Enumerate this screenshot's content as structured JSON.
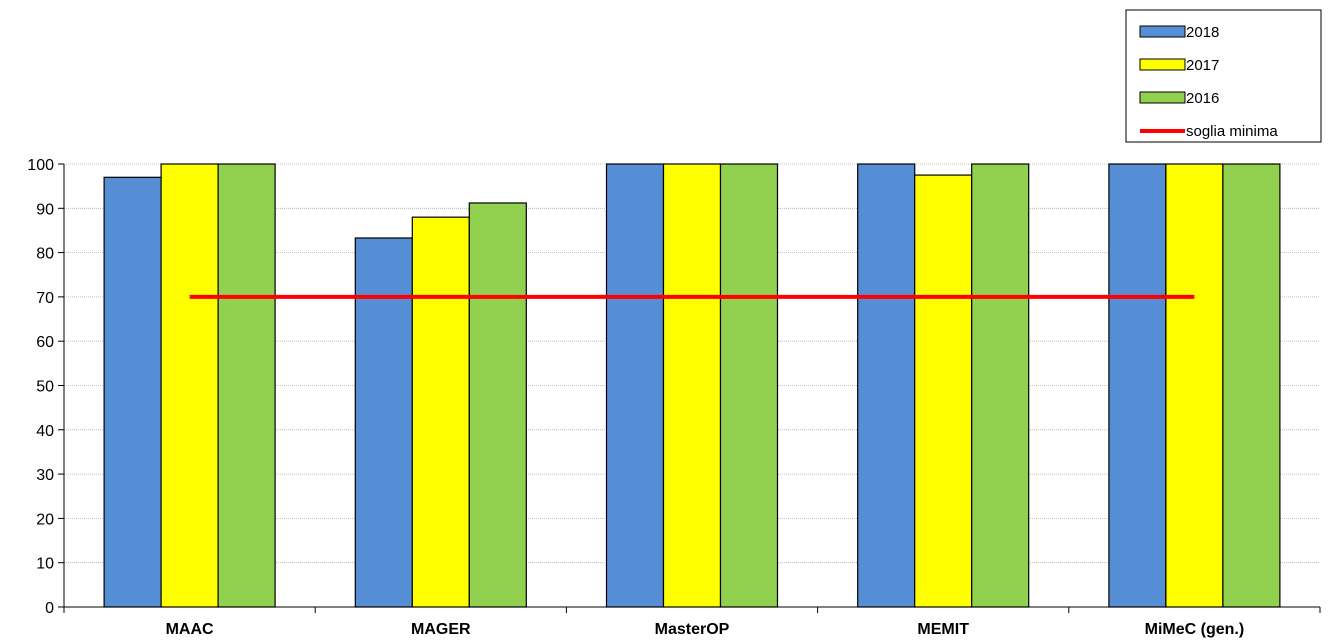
{
  "chart_data": {
    "type": "bar",
    "categories": [
      "MAAC",
      "MAGER",
      "MasterOP",
      "MEMIT",
      "MiMeC (gen.)"
    ],
    "series": [
      {
        "name": "2018",
        "values": [
          97,
          83.3,
          100,
          100,
          100
        ]
      },
      {
        "name": "2017",
        "values": [
          100,
          88,
          100,
          97.5,
          100
        ]
      },
      {
        "name": "2016",
        "values": [
          100,
          91.2,
          100,
          100,
          100
        ]
      }
    ],
    "threshold": {
      "name": "soglia minima",
      "value": 70
    },
    "ylim": [
      0,
      100
    ],
    "yticks": [
      0,
      10,
      20,
      30,
      40,
      50,
      60,
      70,
      80,
      90,
      100
    ],
    "grid": true,
    "legend_position": "top-right",
    "colors": {
      "2018": "#558ed5",
      "2017": "#ffff00",
      "2016": "#92d050",
      "soglia minima": "#ff0000"
    }
  }
}
